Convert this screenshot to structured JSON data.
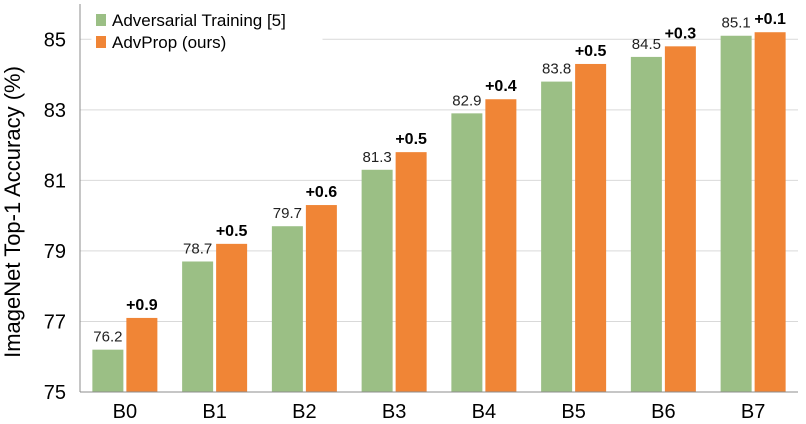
{
  "chart_data": {
    "type": "bar",
    "title": "",
    "xlabel": "",
    "ylabel": "ImageNet Top-1 Accuracy (%)",
    "ylim": [
      75,
      86
    ],
    "yticks": [
      75,
      77,
      79,
      81,
      83,
      85
    ],
    "grid": true,
    "legend_position": "top-left",
    "categories": [
      "B0",
      "B1",
      "B2",
      "B3",
      "B4",
      "B5",
      "B6",
      "B7"
    ],
    "series": [
      {
        "name": "Adversarial Training [5]",
        "color": "#9bbf85",
        "values": [
          76.2,
          78.7,
          79.7,
          81.3,
          82.9,
          83.8,
          84.5,
          85.1
        ],
        "labels": [
          "76.2",
          "78.7",
          "79.7",
          "81.3",
          "82.9",
          "83.8",
          "84.5",
          "85.1"
        ]
      },
      {
        "name": "AdvProp (ours)",
        "color": "#f08536",
        "values": [
          77.1,
          79.2,
          80.3,
          81.8,
          83.3,
          84.3,
          84.8,
          85.2
        ],
        "labels": [
          "+0.9",
          "+0.5",
          "+0.6",
          "+0.5",
          "+0.4",
          "+0.5",
          "+0.3",
          "+0.1"
        ]
      }
    ]
  }
}
